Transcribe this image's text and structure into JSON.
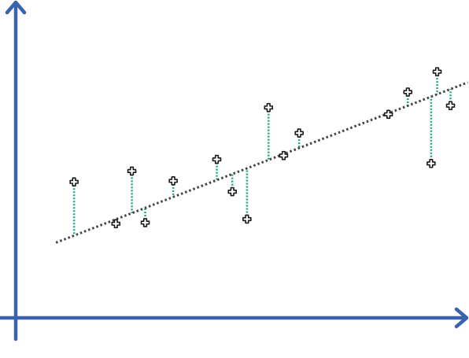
{
  "chart_data": {
    "type": "scatter",
    "title": "",
    "xlabel": "",
    "ylabel": "",
    "xlim": [
      0,
      100
    ],
    "ylim": [
      0,
      100
    ],
    "grid": false,
    "regression_line": {
      "intercept": 17,
      "slope": 0.618
    },
    "points": [
      {
        "x": 11.7,
        "y": 44.0
      },
      {
        "x": 21.4,
        "y": 28.6
      },
      {
        "x": 25.1,
        "y": 48.0
      },
      {
        "x": 28.2,
        "y": 29.0
      },
      {
        "x": 34.7,
        "y": 44.4
      },
      {
        "x": 44.8,
        "y": 52.3
      },
      {
        "x": 48.4,
        "y": 40.4
      },
      {
        "x": 51.8,
        "y": 30.3
      },
      {
        "x": 56.8,
        "y": 71.4
      },
      {
        "x": 60.3,
        "y": 53.7
      },
      {
        "x": 63.9,
        "y": 62.0
      },
      {
        "x": 84.6,
        "y": 68.9
      },
      {
        "x": 89.1,
        "y": 77.1
      },
      {
        "x": 94.5,
        "y": 50.8
      },
      {
        "x": 95.9,
        "y": 84.6
      },
      {
        "x": 99.0,
        "y": 72.1
      }
    ],
    "colors": {
      "axes": "#3a62ae",
      "regression": "#444444",
      "residual": "#1aa78c",
      "marker_stroke": "#1a1a1a",
      "marker_fill": "#ffffff"
    }
  }
}
